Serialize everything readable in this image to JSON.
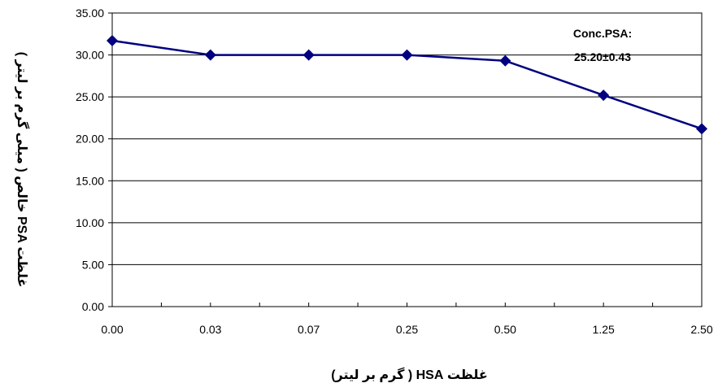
{
  "chart_data": {
    "type": "line",
    "categories": [
      "0.00",
      "0.03",
      "0.07",
      "0.25",
      "0.50",
      "1.25",
      "2.50"
    ],
    "series": [
      {
        "values": [
          31.7,
          30.0,
          30.0,
          30.0,
          29.3,
          25.2,
          21.2
        ]
      }
    ],
    "xlabel": "غلظت HSA ( گرم بر لیتر)",
    "ylabel": "غلظت PSA خالص ( میلی گرم بر لیتر )",
    "ylim": [
      0,
      35
    ],
    "yticks": [
      "0.00",
      "5.00",
      "10.00",
      "15.00",
      "20.00",
      "25.00",
      "30.00",
      "35.00"
    ],
    "annotation": {
      "line1": "Conc.PSA:",
      "line2": "25.20±0.43"
    },
    "grid": "horizontal",
    "colors": {
      "series": "#000080",
      "grid": "#000000"
    }
  }
}
